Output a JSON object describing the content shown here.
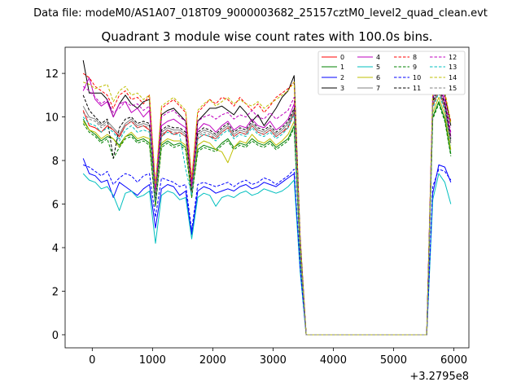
{
  "figure": {
    "suptitle": "Data file: modeM0/AS1A07_018T09_9000003682_25157cztM0_level2_quad_clean.evt",
    "title": "Quadrant 3 module wise count rates with 100.0s bins.",
    "x_offset_label": "+3.2795e8"
  },
  "chart_data": {
    "type": "line",
    "title": "Quadrant 3 module wise count rates with 100.0s bins.",
    "xlabel": "",
    "ylabel": "",
    "xlim": [
      -450,
      6250
    ],
    "ylim": [
      -0.6,
      13.2
    ],
    "xticks": [
      0,
      1000,
      2000,
      3000,
      4000,
      5000,
      6000
    ],
    "xtick_labels": [
      "0",
      "1000",
      "2000",
      "3000",
      "4000",
      "5000",
      "6000"
    ],
    "yticks": [
      0,
      2,
      4,
      6,
      8,
      10,
      12
    ],
    "ytick_labels": [
      "0",
      "2",
      "4",
      "6",
      "8",
      "10",
      "12"
    ],
    "grid": false,
    "legend_position": "top-right",
    "x": [
      -150,
      -50,
      50,
      150,
      250,
      350,
      450,
      550,
      650,
      750,
      850,
      950,
      1050,
      1150,
      1250,
      1350,
      1450,
      1550,
      1650,
      1750,
      1850,
      1950,
      2050,
      2150,
      2250,
      2350,
      2450,
      2550,
      2650,
      2750,
      2850,
      2950,
      3050,
      3150,
      3250,
      3350,
      3450,
      3550,
      5550,
      5650,
      5750,
      5850,
      5950
    ],
    "series": [
      {
        "name": "0",
        "color": "#ff0000",
        "dash": "solid",
        "values": [
          10.3,
          9.6,
          9.5,
          9.3,
          9.6,
          9.4,
          9.1,
          9.6,
          9.8,
          9.5,
          9.6,
          9.4,
          6.3,
          9.1,
          9.4,
          9.2,
          9.3,
          9.1,
          6.9,
          9.0,
          9.2,
          9.1,
          9.0,
          9.3,
          9.5,
          9.1,
          9.3,
          9.2,
          9.6,
          9.3,
          9.2,
          9.4,
          9.1,
          9.3,
          9.5,
          10.2,
          4.0,
          0,
          0,
          10.5,
          11.2,
          10.4,
          8.8
        ]
      },
      {
        "name": "1",
        "color": "#008000",
        "dash": "solid",
        "values": [
          9.9,
          9.4,
          9.2,
          8.9,
          9.1,
          9.0,
          8.7,
          9.1,
          9.2,
          8.9,
          9.0,
          8.8,
          6.0,
          8.7,
          8.9,
          8.7,
          8.8,
          8.6,
          6.4,
          8.5,
          8.7,
          8.6,
          8.5,
          8.8,
          9.0,
          8.6,
          8.8,
          8.7,
          9.0,
          8.8,
          8.7,
          8.9,
          8.6,
          8.8,
          9.0,
          9.6,
          3.7,
          0,
          0,
          10.0,
          10.7,
          9.9,
          8.3
        ]
      },
      {
        "name": "2",
        "color": "#0000ff",
        "dash": "solid",
        "values": [
          8.1,
          7.4,
          7.3,
          7.0,
          7.1,
          6.3,
          7.0,
          6.8,
          6.6,
          6.4,
          6.7,
          6.9,
          4.9,
          6.7,
          6.9,
          6.8,
          6.4,
          6.6,
          4.6,
          6.6,
          6.8,
          6.7,
          6.5,
          6.6,
          6.7,
          6.6,
          6.8,
          6.9,
          6.7,
          6.8,
          7.0,
          6.9,
          6.8,
          7.0,
          7.2,
          7.4,
          3.0,
          0,
          0,
          6.5,
          7.8,
          7.7,
          7.0
        ]
      },
      {
        "name": "3",
        "color": "#000000",
        "dash": "solid",
        "values": [
          12.6,
          11.1,
          11.1,
          11.1,
          10.8,
          10.0,
          10.6,
          11.0,
          10.6,
          10.4,
          10.7,
          10.8,
          6.1,
          10.1,
          10.3,
          10.4,
          10.1,
          9.8,
          6.5,
          9.8,
          10.1,
          10.4,
          10.4,
          10.5,
          10.3,
          10.1,
          10.5,
          10.2,
          9.8,
          10.1,
          9.6,
          10.0,
          10.4,
          10.9,
          11.2,
          11.9,
          4.5,
          0,
          0,
          10.8,
          11.8,
          11.0,
          9.6
        ]
      },
      {
        "name": "4",
        "color": "#bf00bf",
        "dash": "solid",
        "values": [
          11.2,
          11.8,
          10.8,
          10.5,
          10.7,
          10.0,
          10.6,
          10.7,
          10.2,
          10.4,
          10.0,
          10.3,
          6.8,
          9.6,
          9.8,
          9.9,
          9.7,
          9.5,
          7.0,
          9.4,
          9.7,
          9.6,
          9.3,
          9.6,
          9.8,
          9.4,
          9.6,
          9.5,
          9.9,
          9.6,
          9.5,
          9.8,
          9.4,
          9.6,
          9.9,
          10.6,
          4.1,
          0,
          0,
          10.9,
          11.5,
          10.7,
          9.1
        ]
      },
      {
        "name": "5",
        "color": "#00bfbf",
        "dash": "solid",
        "values": [
          7.4,
          7.1,
          7.0,
          6.7,
          6.8,
          6.4,
          5.7,
          6.5,
          6.6,
          6.3,
          6.4,
          6.6,
          4.2,
          6.4,
          6.6,
          6.5,
          6.2,
          6.3,
          4.4,
          6.3,
          6.5,
          6.4,
          5.9,
          6.3,
          6.4,
          6.3,
          6.5,
          6.6,
          6.4,
          6.5,
          6.7,
          6.6,
          6.5,
          6.6,
          6.8,
          7.1,
          2.9,
          0,
          0,
          6.2,
          7.4,
          7.0,
          6.0
        ]
      },
      {
        "name": "6",
        "color": "#bfbf00",
        "dash": "solid",
        "values": [
          9.8,
          9.4,
          9.3,
          9.0,
          9.2,
          9.0,
          8.6,
          9.1,
          9.3,
          9.0,
          9.1,
          9.0,
          5.9,
          8.8,
          9.0,
          8.9,
          8.9,
          8.7,
          6.3,
          8.7,
          8.9,
          8.8,
          8.5,
          8.4,
          7.9,
          8.6,
          8.9,
          8.8,
          9.2,
          8.9,
          8.8,
          9.0,
          8.7,
          8.9,
          9.2,
          9.8,
          3.8,
          0,
          0,
          10.2,
          10.9,
          10.1,
          8.5
        ]
      },
      {
        "name": "7",
        "color": "#808080",
        "dash": "solid",
        "values": [
          10.5,
          10.0,
          9.9,
          9.6,
          9.8,
          9.5,
          9.2,
          9.7,
          9.9,
          9.6,
          9.7,
          9.6,
          6.2,
          9.3,
          9.5,
          9.4,
          9.4,
          9.2,
          6.6,
          9.2,
          9.4,
          9.3,
          9.1,
          9.4,
          9.6,
          9.2,
          9.4,
          9.3,
          9.7,
          9.4,
          9.3,
          9.5,
          9.2,
          9.4,
          9.7,
          10.3,
          4.0,
          0,
          0,
          10.6,
          11.3,
          10.5,
          8.9
        ]
      },
      {
        "name": "8",
        "color": "#ff0000",
        "dash": "dashed",
        "values": [
          12.0,
          11.8,
          11.4,
          11.2,
          11.0,
          10.4,
          11.0,
          11.2,
          10.8,
          10.9,
          10.6,
          11.0,
          6.7,
          10.4,
          10.6,
          10.8,
          10.5,
          10.2,
          7.1,
          10.2,
          10.5,
          10.8,
          10.6,
          10.9,
          10.8,
          10.5,
          10.9,
          10.6,
          10.3,
          10.6,
          10.2,
          10.5,
          10.9,
          11.1,
          11.3,
          11.6,
          4.4,
          0,
          0,
          11.2,
          11.8,
          11.0,
          9.8
        ]
      },
      {
        "name": "9",
        "color": "#008000",
        "dash": "dashed",
        "values": [
          9.7,
          9.3,
          9.1,
          8.8,
          9.0,
          8.1,
          8.6,
          9.0,
          9.1,
          8.8,
          8.9,
          8.7,
          5.9,
          8.6,
          8.8,
          8.6,
          8.7,
          8.5,
          6.3,
          8.4,
          8.6,
          8.5,
          8.4,
          8.7,
          8.9,
          8.5,
          8.7,
          8.6,
          8.9,
          8.7,
          8.6,
          8.8,
          8.5,
          8.7,
          8.9,
          9.5,
          3.7,
          0,
          0,
          9.9,
          10.6,
          9.8,
          8.2
        ]
      },
      {
        "name": "10",
        "color": "#0000ff",
        "dash": "dashed",
        "values": [
          7.8,
          7.7,
          7.5,
          7.3,
          7.5,
          6.9,
          7.2,
          7.4,
          7.3,
          7.0,
          7.3,
          7.4,
          5.4,
          7.2,
          7.1,
          7.0,
          6.8,
          6.9,
          4.8,
          6.9,
          7.0,
          6.9,
          6.8,
          6.9,
          7.0,
          6.8,
          7.0,
          7.1,
          6.9,
          7.0,
          7.2,
          7.1,
          6.9,
          7.1,
          7.3,
          7.6,
          3.1,
          0,
          0,
          6.8,
          7.6,
          7.5,
          7.1
        ]
      },
      {
        "name": "11",
        "color": "#000000",
        "dash": "dashed",
        "values": [
          11.0,
          10.3,
          10.0,
          9.7,
          9.9,
          8.1,
          9.5,
          9.9,
          10.0,
          9.7,
          9.8,
          9.7,
          6.1,
          9.4,
          9.6,
          9.5,
          9.5,
          9.3,
          6.5,
          9.3,
          9.5,
          9.4,
          9.2,
          9.5,
          9.7,
          9.3,
          9.5,
          9.4,
          9.8,
          9.5,
          9.4,
          9.6,
          9.3,
          9.5,
          9.8,
          10.4,
          4.1,
          0,
          0,
          10.7,
          11.4,
          10.6,
          9.0
        ]
      },
      {
        "name": "12",
        "color": "#bf00bf",
        "dash": "dashed",
        "values": [
          11.4,
          11.2,
          10.9,
          10.6,
          10.8,
          10.2,
          10.4,
          10.7,
          10.5,
          10.6,
          10.3,
          10.5,
          6.6,
          10.0,
          10.2,
          10.3,
          10.0,
          9.8,
          6.8,
          9.8,
          10.0,
          10.1,
          9.9,
          10.1,
          10.2,
          9.9,
          10.1,
          10.0,
          10.3,
          10.0,
          9.9,
          10.2,
          9.9,
          10.1,
          10.3,
          10.9,
          4.2,
          0,
          0,
          11.0,
          11.6,
          10.8,
          9.3
        ]
      },
      {
        "name": "13",
        "color": "#00bfbf",
        "dash": "dashed",
        "values": [
          10.0,
          9.7,
          9.6,
          9.3,
          9.5,
          9.3,
          8.9,
          9.4,
          9.6,
          9.3,
          9.4,
          9.3,
          6.1,
          9.1,
          9.3,
          9.2,
          9.2,
          7.6,
          6.4,
          9.0,
          9.2,
          9.1,
          8.9,
          9.2,
          9.4,
          9.0,
          9.2,
          9.1,
          9.5,
          9.2,
          9.1,
          9.3,
          9.0,
          9.2,
          9.5,
          10.1,
          3.9,
          0,
          0,
          10.4,
          11.1,
          10.3,
          8.7
        ]
      },
      {
        "name": "14",
        "color": "#bfbf00",
        "dash": "dashed",
        "values": [
          11.6,
          11.5,
          11.3,
          11.4,
          11.5,
          10.7,
          11.2,
          11.4,
          11.0,
          11.1,
          10.8,
          11.0,
          6.9,
          10.5,
          10.7,
          10.9,
          10.6,
          10.3,
          7.2,
          10.3,
          10.6,
          10.8,
          10.5,
          10.7,
          10.9,
          10.6,
          10.8,
          10.6,
          10.5,
          10.7,
          10.4,
          10.6,
          10.8,
          11.0,
          11.2,
          11.6,
          4.4,
          0,
          0,
          11.1,
          11.9,
          11.2,
          9.7
        ]
      },
      {
        "name": "15",
        "color": "#808080",
        "dash": "dashed",
        "values": [
          10.2,
          9.9,
          9.8,
          9.5,
          9.7,
          9.4,
          9.0,
          9.6,
          9.8,
          9.5,
          9.6,
          9.5,
          6.2,
          9.2,
          9.4,
          9.3,
          9.3,
          9.1,
          6.5,
          9.1,
          9.3,
          9.2,
          9.0,
          9.3,
          9.5,
          9.1,
          9.3,
          9.2,
          9.6,
          9.3,
          9.2,
          9.4,
          9.1,
          9.3,
          9.6,
          10.2,
          3.9,
          0,
          0,
          10.5,
          11.2,
          10.4,
          8.8
        ]
      }
    ]
  }
}
